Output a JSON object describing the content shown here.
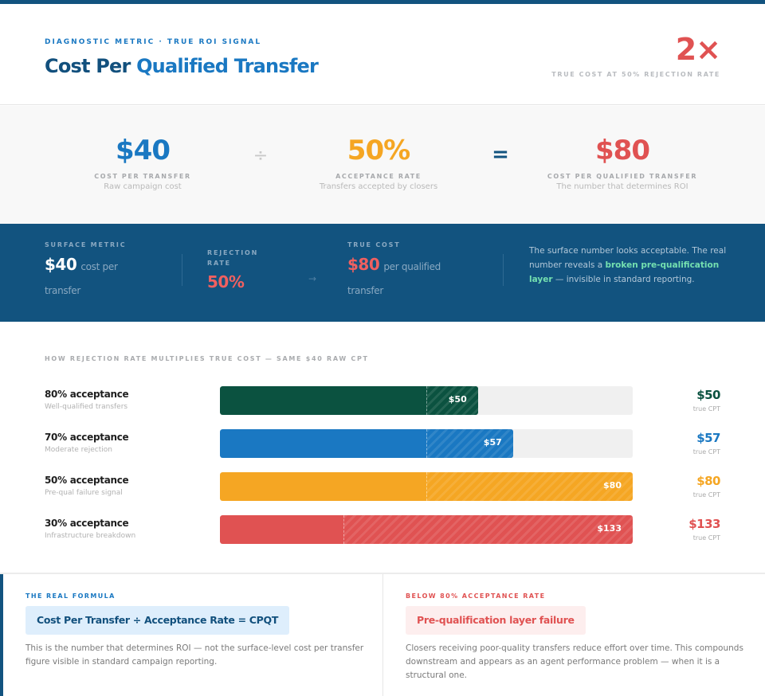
{
  "colors": {
    "navy": "#12537f",
    "blue": "#1a78c2",
    "green": "#0b5240",
    "orange": "#f5a623",
    "red": "#e05252",
    "mint": "#74e0b0"
  },
  "header": {
    "eyebrow": "DIAGNOSTIC METRIC · TRUE ROI SIGNAL",
    "title_part1": "Cost Per ",
    "title_part2": "Qualified Transfer",
    "multiplier": "2×",
    "multiplier_label": "TRUE COST AT 50% REJECTION RATE"
  },
  "formula": {
    "operand1": {
      "value": "$40",
      "label": "COST PER TRANSFER",
      "sub": "Raw campaign cost"
    },
    "operator1": "÷",
    "operand2": {
      "value": "50%",
      "label": "ACCEPTANCE RATE",
      "sub": "Transfers accepted by closers"
    },
    "operator2": "=",
    "result": {
      "value": "$80",
      "label": "COST PER QUALIFIED TRANSFER",
      "sub": "The number that determines ROI"
    }
  },
  "band": {
    "surface": {
      "label": "SURFACE METRIC",
      "value": "$40",
      "unit": "cost per",
      "cont": "transfer"
    },
    "rejection": {
      "label_line1": "REJECTION",
      "label_line2": "RATE",
      "value": "50%"
    },
    "arrow": "→",
    "true_cost": {
      "label": "TRUE COST",
      "value": "$80",
      "unit": "per qualified",
      "cont": "transfer"
    },
    "note": {
      "pre": "The surface number looks acceptable. The real number reveals a ",
      "highlight": "broken pre-qualification layer",
      "post": " — invisible in standard reporting."
    }
  },
  "chart_data": {
    "type": "bar",
    "orientation": "horizontal",
    "title": "HOW REJECTION RATE MULTIPLIES TRUE COST — SAME $40 RAW CPT",
    "xlim": [
      0,
      80
    ],
    "baseline": 40,
    "categories": [
      "80% acceptance",
      "70% acceptance",
      "50% acceptance",
      "30% acceptance"
    ],
    "values": [
      50,
      57,
      80,
      133
    ],
    "rows": [
      {
        "label": "80% acceptance",
        "sub": "Well-qualified transfers",
        "value_label": "$50",
        "true_label": "$50",
        "true_sub": "true CPT",
        "fill_pct": 62.5,
        "base_pct": 50,
        "color": "#0b5240"
      },
      {
        "label": "70% acceptance",
        "sub": "Moderate rejection",
        "value_label": "$57",
        "true_label": "$57",
        "true_sub": "true CPT",
        "fill_pct": 71,
        "base_pct": 50,
        "color": "#1a78c2"
      },
      {
        "label": "50% acceptance",
        "sub": "Pre-qual failure signal",
        "value_label": "$80",
        "true_label": "$80",
        "true_sub": "true CPT",
        "fill_pct": 100,
        "base_pct": 50,
        "color": "#f5a623"
      },
      {
        "label": "30% acceptance",
        "sub": "Infrastructure breakdown",
        "value_label": "$133",
        "true_label": "$133",
        "true_sub": "true CPT",
        "fill_pct": 100,
        "base_pct": 30,
        "color": "#e05252"
      }
    ]
  },
  "cards": {
    "left": {
      "eyebrow": "THE REAL FORMULA",
      "box": "Cost Per Transfer ÷ Acceptance Rate = CPQT",
      "text": "This is the number that determines ROI — not the surface-level cost per transfer figure visible in standard campaign reporting."
    },
    "right": {
      "eyebrow": "BELOW 80% ACCEPTANCE RATE",
      "box": "Pre-qualification layer failure",
      "text": "Closers receiving poor-quality transfers reduce effort over time. This compounds downstream and appears as an agent performance problem — when it is a structural one."
    }
  }
}
